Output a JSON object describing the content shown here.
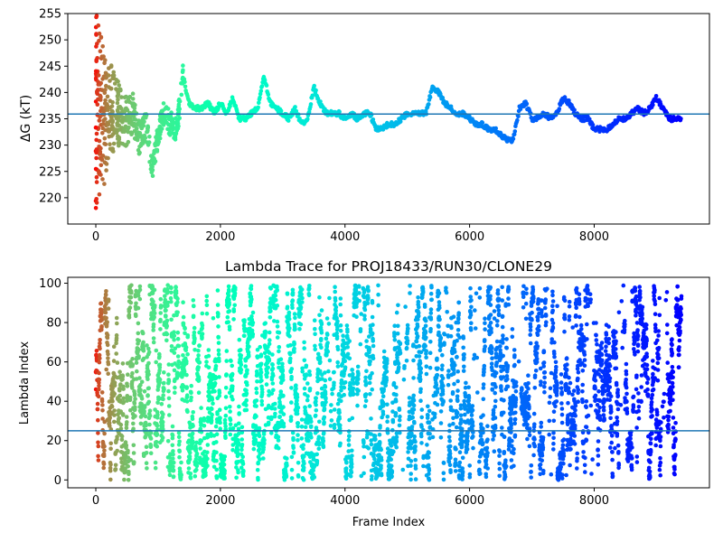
{
  "chart_data": [
    {
      "type": "scatter",
      "title": "",
      "xlabel": "",
      "ylabel": "ΔG (kT)",
      "xlim": [
        -450,
        9850
      ],
      "ylim": [
        215,
        255
      ],
      "xticks": [
        "0",
        "2000",
        "4000",
        "6000",
        "8000"
      ],
      "yticks": [
        "220",
        "225",
        "230",
        "235",
        "240",
        "245",
        "250",
        "255"
      ],
      "hline": 235.9,
      "hline_color": "#1f77b4",
      "colormap": "rainbow (reversed, red at start to violet at end)",
      "grid": false,
      "trace_x": [
        0,
        150,
        300,
        450,
        600,
        700,
        800,
        900,
        1000,
        1100,
        1200,
        1300,
        1400,
        1500,
        1600,
        1700,
        1800,
        1900,
        2000,
        2100,
        2200,
        2300,
        2400,
        2500,
        2600,
        2700,
        2800,
        2900,
        3000,
        3100,
        3200,
        3300,
        3400,
        3500,
        3600,
        3700,
        3800,
        3900,
        4000,
        4100,
        4200,
        4300,
        4400,
        4500,
        4600,
        4700,
        4800,
        4900,
        5000,
        5100,
        5200,
        5300,
        5400,
        5500,
        5600,
        5700,
        5800,
        5900,
        6000,
        6100,
        6200,
        6300,
        6400,
        6500,
        6600,
        6700,
        6800,
        6900,
        7000,
        7100,
        7200,
        7300,
        7400,
        7500,
        7600,
        7700,
        7800,
        7900,
        8000,
        8100,
        8200,
        8300,
        8400,
        8500,
        8600,
        8700,
        8800,
        8900,
        9000,
        9100,
        9200,
        9300,
        9400
      ],
      "trace_y": [
        237,
        235,
        237,
        234,
        236,
        231,
        234,
        226,
        232,
        236,
        234,
        233,
        243,
        238,
        237,
        237,
        238,
        236,
        238,
        236,
        239,
        235,
        235,
        236,
        237,
        243,
        238,
        237,
        236,
        235,
        237,
        234,
        235,
        241,
        238,
        236,
        236,
        236,
        235,
        236,
        235,
        236,
        236,
        233,
        233,
        234,
        234,
        235,
        236,
        236,
        236,
        236,
        241,
        240,
        238,
        237,
        236,
        236,
        235,
        234,
        234,
        233,
        233,
        232,
        231,
        231,
        237,
        238,
        235,
        235,
        236,
        235,
        236,
        239,
        238,
        236,
        235,
        235,
        233,
        233,
        233,
        234,
        235,
        235,
        236,
        237,
        236,
        237,
        239,
        237,
        235,
        235,
        235
      ]
    },
    {
      "type": "scatter",
      "title": "Lambda Trace for PROJ18433/RUN30/CLONE29",
      "xlabel": "Frame Index",
      "ylabel": "Lambda Index",
      "xlim": [
        -450,
        9850
      ],
      "ylim": [
        -4,
        103
      ],
      "xticks": [
        "0",
        "2000",
        "4000",
        "6000",
        "8000"
      ],
      "yticks": [
        "0",
        "20",
        "40",
        "60",
        "80",
        "100"
      ],
      "hline": 25,
      "hline_color": "#1f77b4",
      "colormap": "rainbow (reversed, red at start to violet at end)",
      "grid": false,
      "x_range": [
        0,
        9400
      ],
      "y_range": [
        0,
        99
      ]
    }
  ]
}
